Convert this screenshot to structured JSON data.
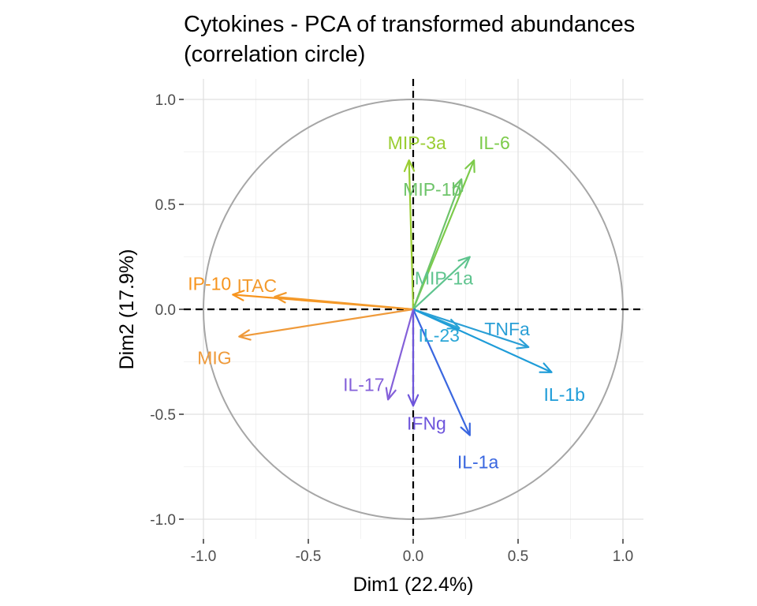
{
  "chart_data": {
    "type": "scatter",
    "title": "Cytokines - PCA of transformed abundances",
    "subtitle": "(correlation circle)",
    "xlabel": "Dim1 (22.4%)",
    "ylabel": "Dim2 (17.9%)",
    "xlim": [
      -1.1,
      1.1
    ],
    "ylim": [
      -1.1,
      1.1
    ],
    "xticks": [
      "-1.0",
      "-0.5",
      "0.0",
      "0.5",
      "1.0"
    ],
    "yticks": [
      "1.0",
      "0.5",
      "0.0",
      "-0.5",
      "-1.0"
    ],
    "grid": true,
    "unit_circle": true,
    "reference_lines": [
      0,
      0
    ],
    "variables": [
      {
        "name": "MIP-3a",
        "x": -0.02,
        "y": 0.71,
        "color": "#9ACD32"
      },
      {
        "name": "IL-6",
        "x": 0.29,
        "y": 0.71,
        "color": "#7CCB4A"
      },
      {
        "name": "MIP-1b",
        "x": 0.23,
        "y": 0.62,
        "color": "#6EC46A"
      },
      {
        "name": "MIP-1a",
        "x": 0.27,
        "y": 0.25,
        "color": "#5EC48E"
      },
      {
        "name": "IP-10",
        "x": -0.86,
        "y": 0.07,
        "color": "#F7941D"
      },
      {
        "name": "ITAC",
        "x": -0.66,
        "y": 0.06,
        "color": "#F39A2C"
      },
      {
        "name": "MIG",
        "x": -0.83,
        "y": -0.13,
        "color": "#EF9A3A"
      },
      {
        "name": "IL-23",
        "x": 0.22,
        "y": -0.09,
        "color": "#2AA6D6"
      },
      {
        "name": "TNFa",
        "x": 0.55,
        "y": -0.18,
        "color": "#2A9FD6"
      },
      {
        "name": "IL-1b",
        "x": 0.66,
        "y": -0.3,
        "color": "#1E9CD8"
      },
      {
        "name": "IL-1a",
        "x": 0.27,
        "y": -0.6,
        "color": "#3A67E0"
      },
      {
        "name": "IFNg",
        "x": 0.0,
        "y": -0.46,
        "color": "#6E55DC"
      },
      {
        "name": "IL-17",
        "x": -0.12,
        "y": -0.43,
        "color": "#8460D9"
      }
    ]
  }
}
